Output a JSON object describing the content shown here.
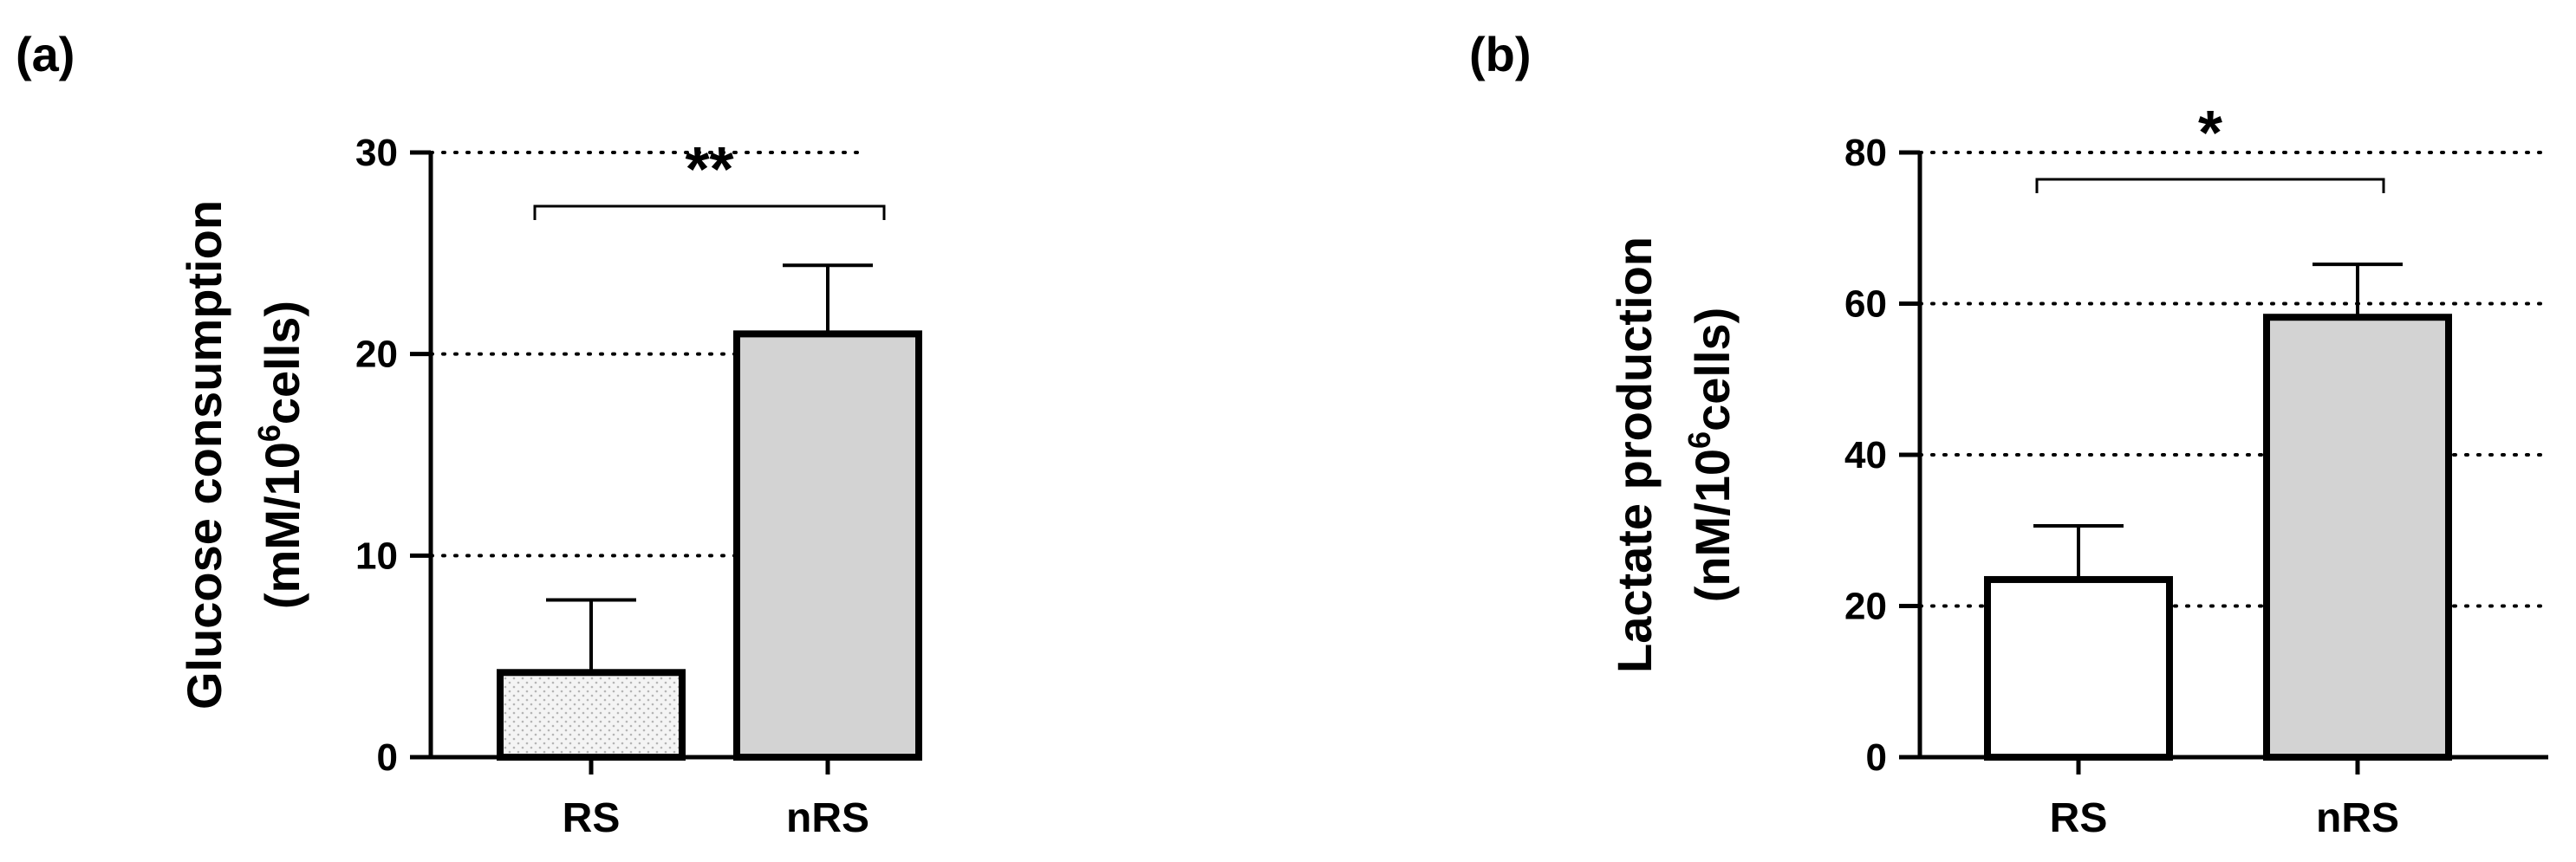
{
  "chart_data": [
    {
      "type": "bar",
      "panel_label": "(a)",
      "categories": [
        "RS",
        "nRS"
      ],
      "values": [
        4.2,
        21.0
      ],
      "error_upper": [
        7.8,
        24.4
      ],
      "bar_fills": [
        "#f2f2f2",
        "#d3d3d3"
      ],
      "bar_patterns": [
        "dotted",
        "solid"
      ],
      "ylabel_line1": "Glucose consumption",
      "ylabel_line2_prefix": "(mM/10",
      "ylabel_line2_sup": "6",
      "ylabel_line2_suffix": "cells)",
      "ylim": [
        0,
        30
      ],
      "yticks": [
        0,
        10,
        20,
        30
      ],
      "grid": "dotted horizontal at major ticks",
      "significance": {
        "label": "**",
        "between": [
          "RS",
          "nRS"
        ]
      }
    },
    {
      "type": "bar",
      "panel_label": "(b)",
      "categories": [
        "RS",
        "nRS"
      ],
      "values": [
        23.5,
        58.2
      ],
      "error_upper": [
        30.6,
        65.2
      ],
      "bar_fills": [
        "#ffffff",
        "#d3d3d3"
      ],
      "bar_patterns": [
        "solid",
        "solid"
      ],
      "ylabel_line1": "Lactate production",
      "ylabel_line2_prefix": "(nM/10",
      "ylabel_line2_sup": "6",
      "ylabel_line2_suffix": "cells)",
      "ylim": [
        0,
        80
      ],
      "yticks": [
        0,
        20,
        40,
        60,
        80
      ],
      "grid": "dotted horizontal at major ticks",
      "significance": {
        "label": "*",
        "between": [
          "RS",
          "nRS"
        ]
      }
    }
  ]
}
